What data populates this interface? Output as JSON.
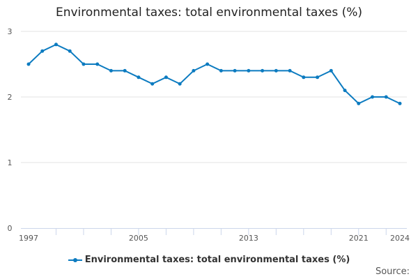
{
  "chart_data": {
    "type": "line",
    "title": "Environmental taxes: total environmental taxes (%)",
    "x": [
      1997,
      1998,
      1999,
      2000,
      2001,
      2002,
      2003,
      2004,
      2005,
      2006,
      2007,
      2008,
      2009,
      2010,
      2011,
      2012,
      2013,
      2014,
      2015,
      2016,
      2017,
      2018,
      2019,
      2020,
      2021,
      2022,
      2023,
      2024
    ],
    "series": [
      {
        "name": "Environmental taxes: total environmental taxes (%)",
        "values": [
          2.5,
          2.7,
          2.8,
          2.7,
          2.5,
          2.5,
          2.4,
          2.4,
          2.3,
          2.2,
          2.3,
          2.2,
          2.4,
          2.5,
          2.4,
          2.4,
          2.4,
          2.4,
          2.4,
          2.4,
          2.3,
          2.3,
          2.4,
          2.1,
          1.9,
          2.0,
          2.0,
          1.9
        ],
        "color": "#0c7bc0"
      }
    ],
    "xticks": [
      "1997",
      "2005",
      "2013",
      "2021",
      "2024"
    ],
    "yticks": [
      "0",
      "1",
      "2",
      "3"
    ],
    "ylim": [
      0,
      3
    ],
    "xlim": [
      1997,
      2024
    ],
    "grid": true,
    "legend": "bottom"
  },
  "source_label": "Source:"
}
